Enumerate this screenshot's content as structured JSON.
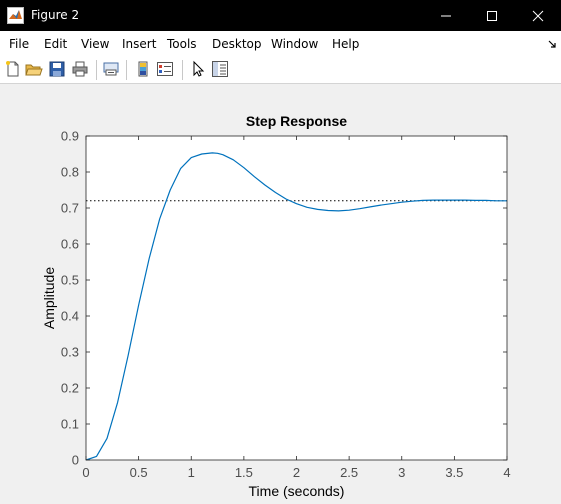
{
  "window": {
    "title": "Figure 2",
    "icon": "matlab-icon",
    "controls": [
      "minimize-icon",
      "maximize-icon",
      "close-icon"
    ]
  },
  "menu": {
    "items": [
      "File",
      "Edit",
      "View",
      "Insert",
      "Tools",
      "Desktop",
      "Window",
      "Help"
    ],
    "extra_icon": "dock-arrow-icon"
  },
  "toolbar": {
    "buttons": [
      "new-figure-icon",
      "open-file-icon",
      "save-icon",
      "print-icon",
      "link-plot-icon",
      "insert-colorbar-icon",
      "insert-legend-icon",
      "edit-plot-arrow-icon",
      "property-inspector-icon"
    ]
  },
  "chart_data": {
    "type": "line",
    "title": "Step Response",
    "xlabel": "Time (seconds)",
    "ylabel": "Amplitude",
    "xlim": [
      0,
      4
    ],
    "ylim": [
      0,
      0.9
    ],
    "xticks": [
      "0",
      "0.5",
      "1",
      "1.5",
      "2",
      "2.5",
      "3",
      "3.5",
      "4"
    ],
    "yticks": [
      "0",
      "0.1",
      "0.2",
      "0.3",
      "0.4",
      "0.5",
      "0.6",
      "0.7",
      "0.8",
      "0.9"
    ],
    "grid": false,
    "final_value": 0.72,
    "series": [
      {
        "color": "#0072bd",
        "x": [
          0,
          0.1,
          0.2,
          0.3,
          0.4,
          0.5,
          0.6,
          0.7,
          0.8,
          0.9,
          1.0,
          1.1,
          1.2,
          1.25,
          1.3,
          1.4,
          1.5,
          1.6,
          1.7,
          1.8,
          1.9,
          2.0,
          2.1,
          2.2,
          2.3,
          2.4,
          2.5,
          2.6,
          2.7,
          2.8,
          2.9,
          3.0,
          3.1,
          3.2,
          3.3,
          3.4,
          3.5,
          3.6,
          3.7,
          3.8,
          3.9,
          4.0
        ],
        "y": [
          0,
          0.01,
          0.06,
          0.16,
          0.29,
          0.43,
          0.56,
          0.67,
          0.75,
          0.81,
          0.84,
          0.85,
          0.853,
          0.852,
          0.848,
          0.834,
          0.812,
          0.787,
          0.764,
          0.743,
          0.725,
          0.712,
          0.702,
          0.696,
          0.693,
          0.692,
          0.694,
          0.698,
          0.703,
          0.708,
          0.712,
          0.716,
          0.719,
          0.721,
          0.722,
          0.722,
          0.722,
          0.722,
          0.721,
          0.721,
          0.72,
          0.72
        ]
      }
    ]
  }
}
